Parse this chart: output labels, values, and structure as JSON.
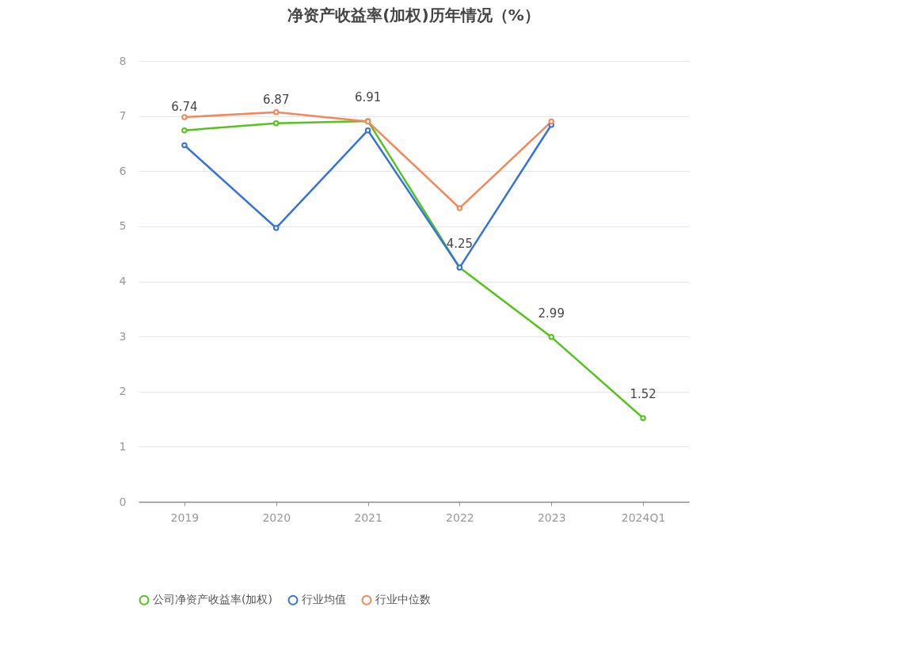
{
  "chart_data": {
    "type": "line",
    "title": "净资产收益率(加权)历年情况（%）",
    "categories": [
      "2019",
      "2020",
      "2021",
      "2022",
      "2023",
      "2024Q1"
    ],
    "ylim": [
      0,
      8
    ],
    "yticks": [
      0,
      1,
      2,
      3,
      4,
      5,
      6,
      7,
      8
    ],
    "grid": "y",
    "legend": "bottom",
    "marker": "circle",
    "line_style": "solid",
    "series": [
      {
        "name": "公司净资产收益率(加权)",
        "color": "#52c41a",
        "values": [
          6.74,
          6.87,
          6.91,
          4.25,
          2.99,
          1.52
        ],
        "value_labels": [
          "6.74",
          "6.87",
          "6.91",
          "4.25",
          "2.99",
          "1.52"
        ]
      },
      {
        "name": "行业均值",
        "color": "#3473e0",
        "values": [
          6.47,
          4.97,
          6.74,
          4.25,
          6.84,
          null
        ]
      },
      {
        "name": "行业中位数",
        "color": "#f5875a",
        "values": [
          6.98,
          7.07,
          6.9,
          5.33,
          6.9,
          null
        ]
      }
    ]
  }
}
